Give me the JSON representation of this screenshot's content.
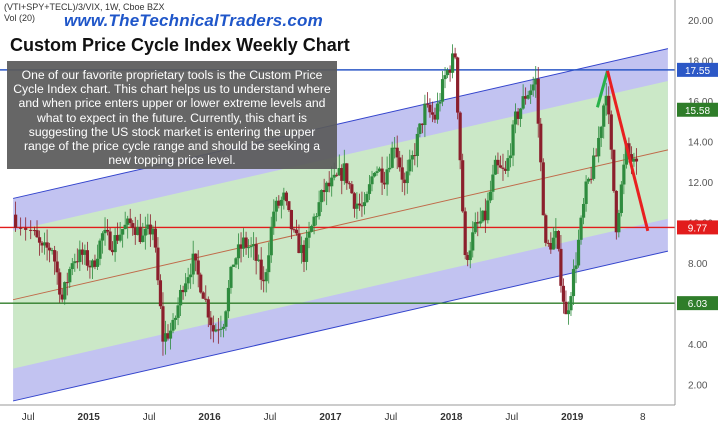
{
  "header": {
    "symbol": "(VTI+SPY+TECL)/3/VIX, 1W, Cboe BZX",
    "volume": "Vol (20)",
    "site": "www.TheTechnicalTraders.com",
    "title": "Custom Price Cycle Index Weekly Chart"
  },
  "annotation": {
    "text": "One of our favorite proprietary tools is the Custom Price Cycle Index chart.  This chart helps us to understand where and when price enters upper or lower extreme levels and what to expect in the future.  Currently, this chart is suggesting the US stock market is entering the upper range of the price cycle range and should be seeking a new topping price level."
  },
  "colors": {
    "up": "#2e8b3e",
    "down": "#8b1f2c",
    "channel_outer": "#b7b9ee",
    "channel_inner": "#cdeebf",
    "channel_line": "#3344cc",
    "mid_line": "#c06b4a",
    "level_blue": "#2c58c6",
    "level_red": "#e21c1c",
    "level_green": "#2f7d2a",
    "projection_up": "#28b24a",
    "projection_down": "#e82020"
  },
  "chart_data": {
    "type": "candlestick",
    "x_tick_labels": [
      "Jul",
      "2015",
      "Jul",
      "2016",
      "Jul",
      "2017",
      "Jul",
      "2018",
      "Jul",
      "2019",
      "8"
    ],
    "y_tick_labels": [
      "2.00",
      "4.00",
      "6.00",
      "8.00",
      "10.00",
      "12.00",
      "14.00",
      "16.00",
      "18.00",
      "20.00"
    ],
    "ylim": [
      1.0,
      21.0
    ],
    "levels": [
      {
        "label": "17.55",
        "value": 17.55,
        "color": "#2c58c6"
      },
      {
        "label": "15.58",
        "value": 15.58,
        "color": "#2f7d2a"
      },
      {
        "label": "9.77",
        "value": 9.77,
        "color": "#e21c1c"
      },
      {
        "label": "6.03",
        "value": 6.03,
        "color": "#2f7d2a"
      }
    ],
    "channel": {
      "start_date": "2014-05",
      "end_date": "2019-10",
      "mid_start": 6.2,
      "mid_end": 13.6,
      "inner_half_width": 3.4,
      "outer_half_width": 5.0
    },
    "projection": [
      {
        "date": "2019-03",
        "value": 15.7
      },
      {
        "date": "2019-04",
        "value": 17.5
      },
      {
        "date": "2019-08",
        "value": 9.6
      }
    ],
    "closes": [
      {
        "date": "2014-05",
        "value": 10.4
      },
      {
        "date": "2014-07",
        "value": 9.6
      },
      {
        "date": "2014-08",
        "value": 8.6
      },
      {
        "date": "2014-09",
        "value": 8.8
      },
      {
        "date": "2014-10",
        "value": 6.2
      },
      {
        "date": "2014-11",
        "value": 8.2
      },
      {
        "date": "2014-12",
        "value": 8.4
      },
      {
        "date": "2015-01",
        "value": 7.8
      },
      {
        "date": "2015-02",
        "value": 9.4
      },
      {
        "date": "2015-03",
        "value": 9.0
      },
      {
        "date": "2015-04",
        "value": 9.7
      },
      {
        "date": "2015-05",
        "value": 10.0
      },
      {
        "date": "2015-06",
        "value": 9.2
      },
      {
        "date": "2015-07",
        "value": 9.8
      },
      {
        "date": "2015-08",
        "value": 4.3
      },
      {
        "date": "2015-09",
        "value": 4.8
      },
      {
        "date": "2015-10",
        "value": 7.0
      },
      {
        "date": "2015-11",
        "value": 8.1
      },
      {
        "date": "2015-12",
        "value": 6.6
      },
      {
        "date": "2016-01",
        "value": 4.7
      },
      {
        "date": "2016-02",
        "value": 5.2
      },
      {
        "date": "2016-03",
        "value": 8.1
      },
      {
        "date": "2016-04",
        "value": 9.0
      },
      {
        "date": "2016-05",
        "value": 8.6
      },
      {
        "date": "2016-06",
        "value": 6.9
      },
      {
        "date": "2016-07",
        "value": 10.6
      },
      {
        "date": "2016-08",
        "value": 11.2
      },
      {
        "date": "2016-09",
        "value": 9.3
      },
      {
        "date": "2016-10",
        "value": 8.4
      },
      {
        "date": "2016-11",
        "value": 10.2
      },
      {
        "date": "2016-12",
        "value": 11.6
      },
      {
        "date": "2017-01",
        "value": 12.0
      },
      {
        "date": "2017-02",
        "value": 12.6
      },
      {
        "date": "2017-03",
        "value": 11.1
      },
      {
        "date": "2017-04",
        "value": 10.6
      },
      {
        "date": "2017-05",
        "value": 12.8
      },
      {
        "date": "2017-06",
        "value": 12.3
      },
      {
        "date": "2017-07",
        "value": 14.0
      },
      {
        "date": "2017-08",
        "value": 11.8
      },
      {
        "date": "2017-09",
        "value": 13.6
      },
      {
        "date": "2017-10",
        "value": 15.6
      },
      {
        "date": "2017-11",
        "value": 15.2
      },
      {
        "date": "2017-12",
        "value": 17.2
      },
      {
        "date": "2018-01",
        "value": 18.3
      },
      {
        "date": "2018-02",
        "value": 8.1
      },
      {
        "date": "2018-03",
        "value": 9.7
      },
      {
        "date": "2018-04",
        "value": 10.3
      },
      {
        "date": "2018-05",
        "value": 12.7
      },
      {
        "date": "2018-06",
        "value": 12.4
      },
      {
        "date": "2018-07",
        "value": 15.1
      },
      {
        "date": "2018-08",
        "value": 16.3
      },
      {
        "date": "2018-09",
        "value": 17.0
      },
      {
        "date": "2018-10",
        "value": 8.7
      },
      {
        "date": "2018-11",
        "value": 9.3
      },
      {
        "date": "2018-12",
        "value": 5.3
      },
      {
        "date": "2019-01",
        "value": 8.2
      },
      {
        "date": "2019-02",
        "value": 11.6
      },
      {
        "date": "2019-03",
        "value": 13.3
      },
      {
        "date": "2019-04",
        "value": 16.7
      },
      {
        "date": "2019-05",
        "value": 9.9
      },
      {
        "date": "2019-06",
        "value": 13.6
      },
      {
        "date": "2019-07",
        "value": 12.6
      }
    ]
  }
}
